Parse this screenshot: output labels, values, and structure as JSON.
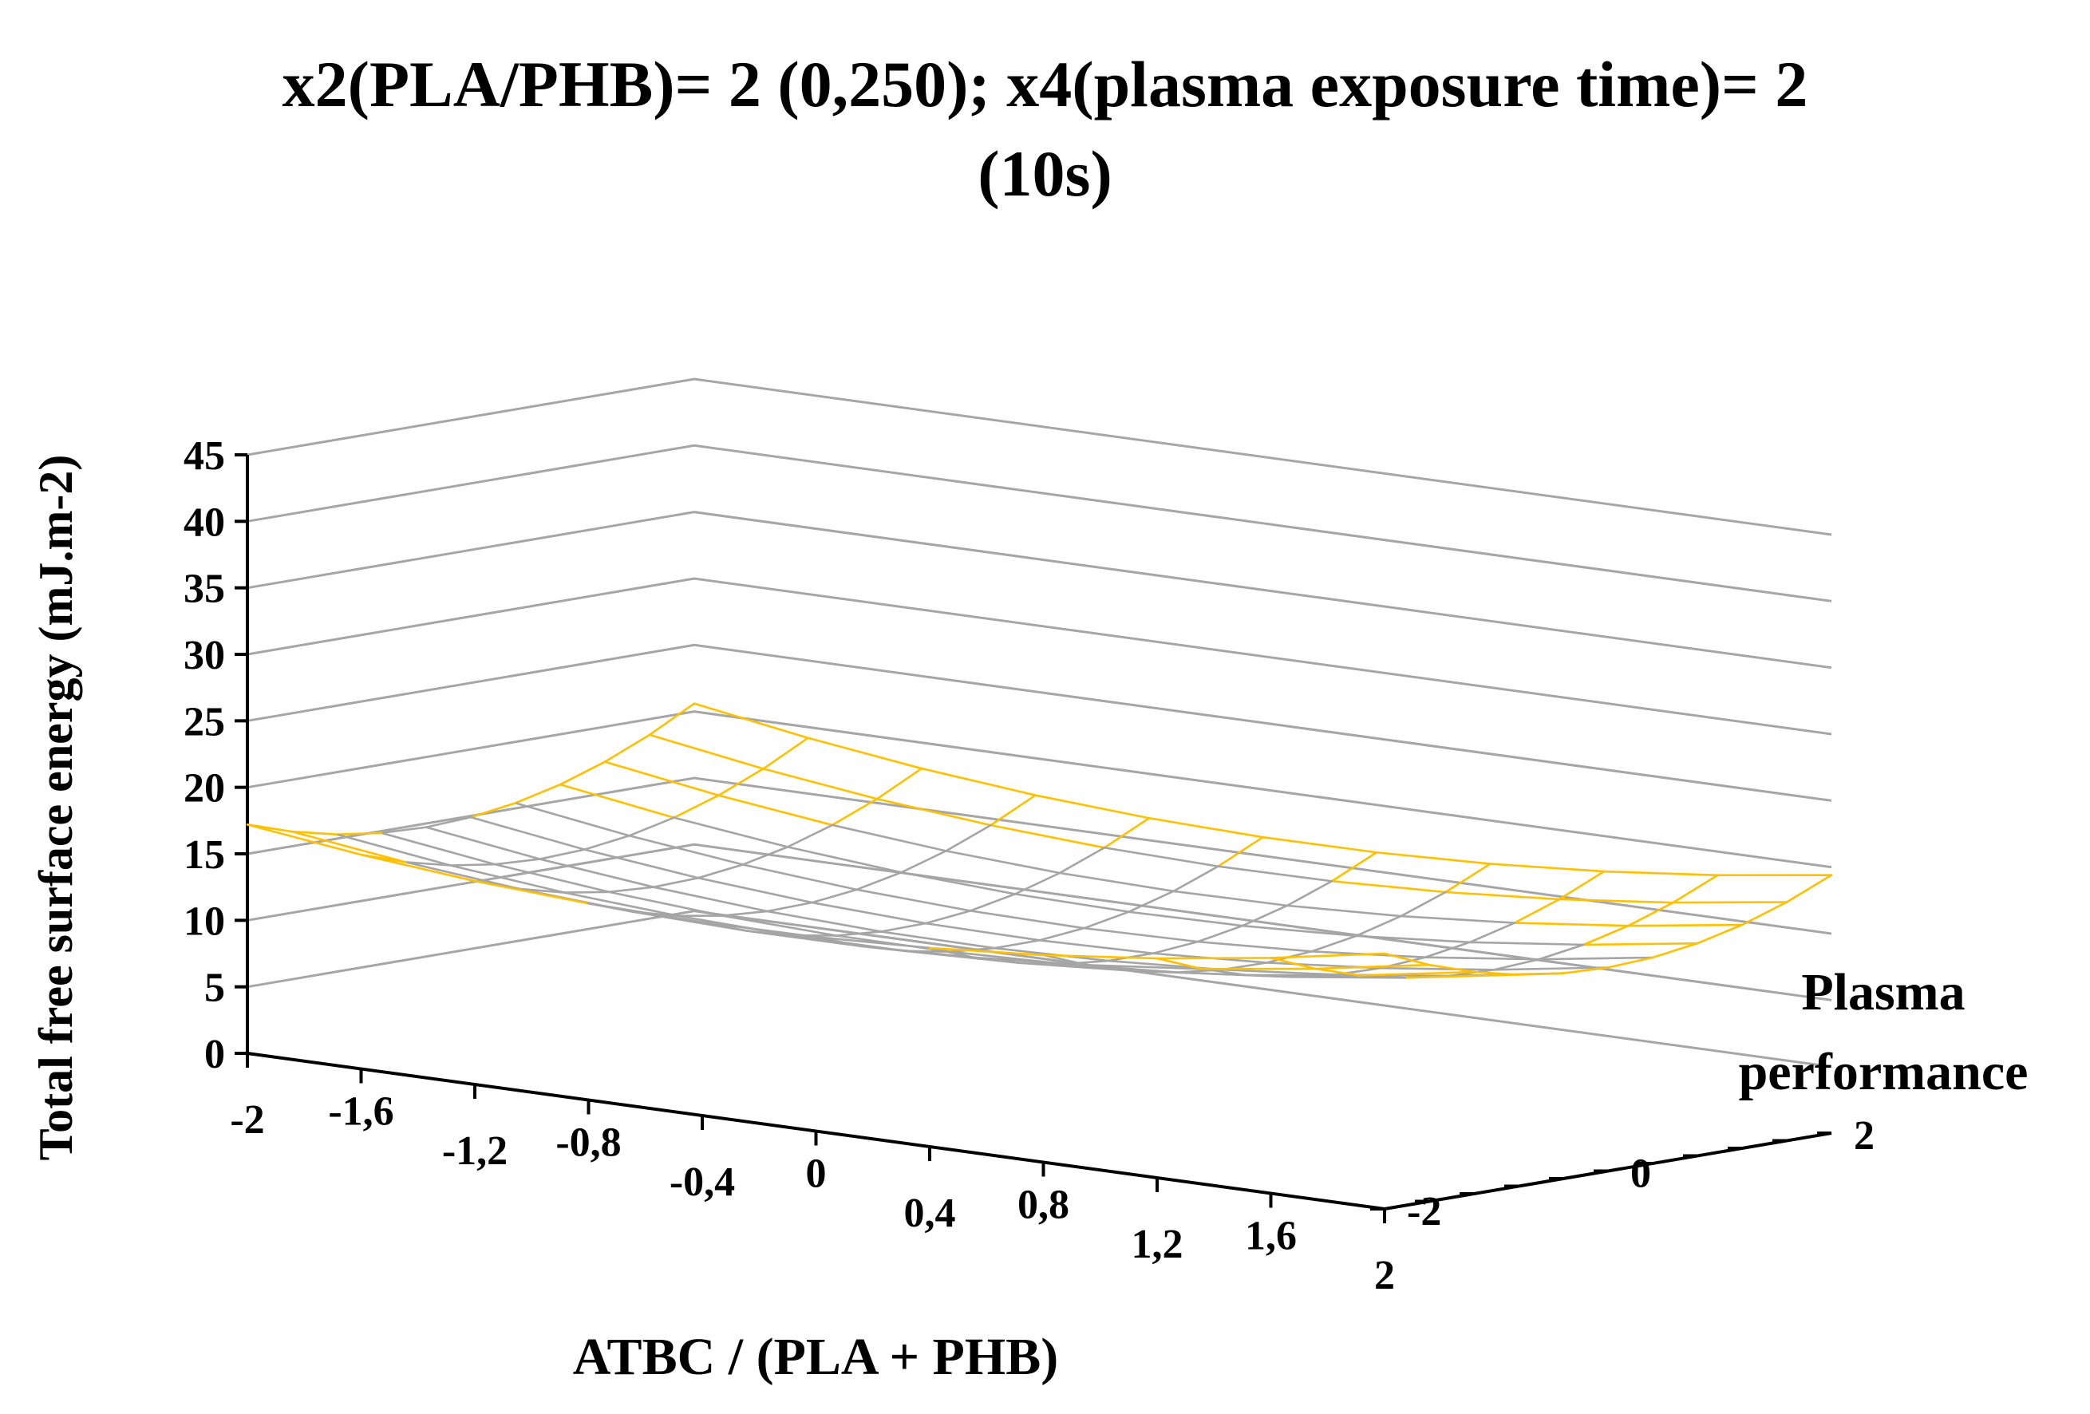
{
  "chart_data": {
    "type": "surface",
    "title_line1": "x2(PLA/PHB)= 2 (0,250); x4(plasma exposure time)= 2",
    "title_line2": "(10s)",
    "xlabel": "ATBC / (PLA + PHB)",
    "ylabel": "Total free surface energy (mJ.m-2)",
    "zlabel_line1": "Plasma",
    "zlabel_line2": "performance",
    "x_ticks": [
      "-2",
      "-1,6",
      "-1,2",
      "-0,8",
      "-0,4",
      "0",
      "0,4",
      "0,8",
      "1,2",
      "1,6",
      "2"
    ],
    "y_ticks": [
      "0",
      "5",
      "10",
      "15",
      "20",
      "25",
      "30",
      "35",
      "40",
      "45"
    ],
    "z_ticks": [
      "-2",
      "0",
      "2"
    ],
    "ylim": [
      0,
      45
    ],
    "x_values": [
      -2,
      -1.6,
      -1.2,
      -0.8,
      -0.4,
      0,
      0.4,
      0.8,
      1.2,
      1.6,
      2
    ],
    "z_values": [
      -2,
      -1.6,
      -1.2,
      -0.8,
      -0.4,
      0,
      0.4,
      0.8,
      1.2,
      1.6,
      2
    ],
    "band_colors": [
      "#A5A5A5",
      "#FFC000",
      "#5B9BD5",
      "#ED7D31",
      "#70AD47",
      "#4472C4"
    ],
    "grid_color": "#A6A6A6"
  }
}
